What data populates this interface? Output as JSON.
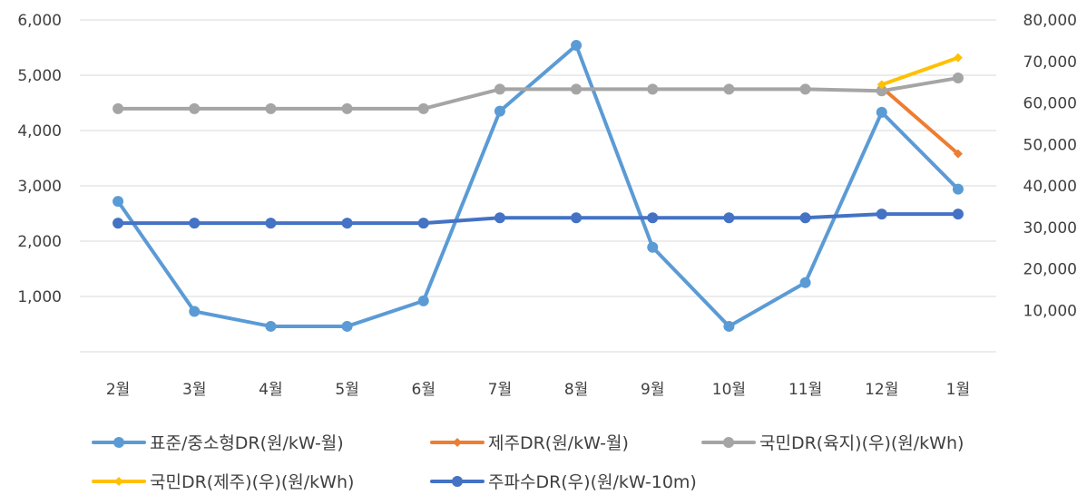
{
  "chart_data": {
    "type": "line",
    "title": "",
    "xlabel": "",
    "ylabel": "",
    "y2label": "",
    "categories": [
      "2월",
      "3월",
      "4월",
      "5월",
      "6월",
      "7월",
      "8월",
      "9월",
      "10월",
      "11월",
      "12월",
      "1월"
    ],
    "ylim": [
      0,
      6000
    ],
    "y2lim": [
      0,
      80000
    ],
    "yticks": [
      {
        "value": 1000,
        "label": "1,000"
      },
      {
        "value": 2000,
        "label": "2,000"
      },
      {
        "value": 3000,
        "label": "3,000"
      },
      {
        "value": 4000,
        "label": "4,000"
      },
      {
        "value": 5000,
        "label": "5,000"
      },
      {
        "value": 6000,
        "label": "6,000"
      }
    ],
    "y2ticks": [
      {
        "value": 10000,
        "label": "10,000"
      },
      {
        "value": 20000,
        "label": "20,000"
      },
      {
        "value": 30000,
        "label": "30,000"
      },
      {
        "value": 40000,
        "label": "40,000"
      },
      {
        "value": 50000,
        "label": "50,000"
      },
      {
        "value": 60000,
        "label": "60,000"
      },
      {
        "value": 70000,
        "label": "70,000"
      },
      {
        "value": 80000,
        "label": "80,000"
      }
    ],
    "grid": true,
    "legend_position": "bottom",
    "series": [
      {
        "name": "표준/중소형DR(원/kW-월)",
        "axis": "left",
        "color": "#5B9BD5",
        "marker": "circle",
        "values": [
          2720,
          730,
          460,
          460,
          920,
          4350,
          5540,
          1890,
          460,
          1250,
          4330,
          2940
        ]
      },
      {
        "name": "제주DR(원/kW-월)",
        "axis": "left",
        "color": "#ED7D31",
        "marker": "diamond",
        "values": [
          null,
          null,
          null,
          null,
          null,
          null,
          null,
          null,
          null,
          null,
          4780,
          3580
        ]
      },
      {
        "name": "국민DR(육지)(우)(원/kWh)",
        "axis": "right",
        "color": "#A5A5A5",
        "marker": "circle",
        "values": [
          58600,
          58600,
          58600,
          58600,
          58600,
          63300,
          63300,
          63300,
          63300,
          63300,
          62900,
          66000
        ]
      },
      {
        "name": "국민DR(제주)(우)(원/kWh)",
        "axis": "right",
        "color": "#FFC000",
        "marker": "diamond",
        "values": [
          null,
          null,
          null,
          null,
          null,
          null,
          null,
          null,
          null,
          null,
          64400,
          70900
        ]
      },
      {
        "name": "주파수DR(우)(원/kW-10m)",
        "axis": "right",
        "color": "#4472C4",
        "marker": "circle",
        "values": [
          31000,
          31000,
          31000,
          31000,
          31000,
          32300,
          32300,
          32300,
          32300,
          32300,
          33200,
          33200
        ]
      }
    ]
  }
}
